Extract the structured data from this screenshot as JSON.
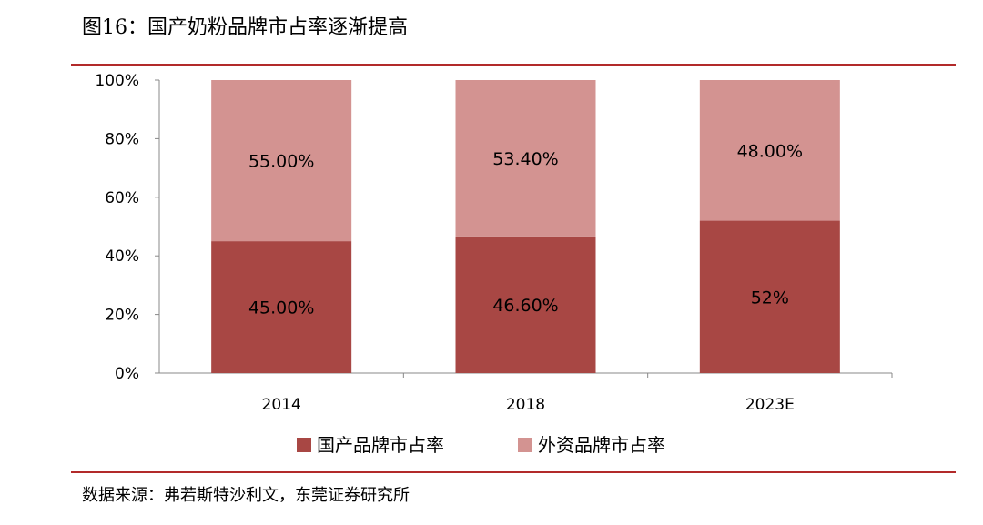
{
  "figure_title": "图16：国产奶粉品牌市占率逐渐提高",
  "source": "数据来源：弗若斯特沙利文，东莞证券研究所",
  "colors": {
    "domestic": "#a84744",
    "foreign": "#d39391",
    "rule": "#b22a2a",
    "axis": "#888888"
  },
  "chart_data": {
    "type": "bar",
    "stacked": true,
    "categories": [
      "2014",
      "2018",
      "2023E"
    ],
    "series": [
      {
        "name": "国产品牌市占率",
        "values": [
          45.0,
          46.6,
          52
        ],
        "labels": [
          "45.00%",
          "46.60%",
          "52%"
        ]
      },
      {
        "name": "外资品牌市占率",
        "values": [
          55.0,
          53.4,
          48.0
        ],
        "labels": [
          "55.00%",
          "53.40%",
          "48.00%"
        ]
      }
    ],
    "y_ticks": [
      "0%",
      "20%",
      "40%",
      "60%",
      "80%",
      "100%"
    ],
    "ylim": [
      0,
      100
    ],
    "grid": false,
    "legend_position": "bottom"
  }
}
